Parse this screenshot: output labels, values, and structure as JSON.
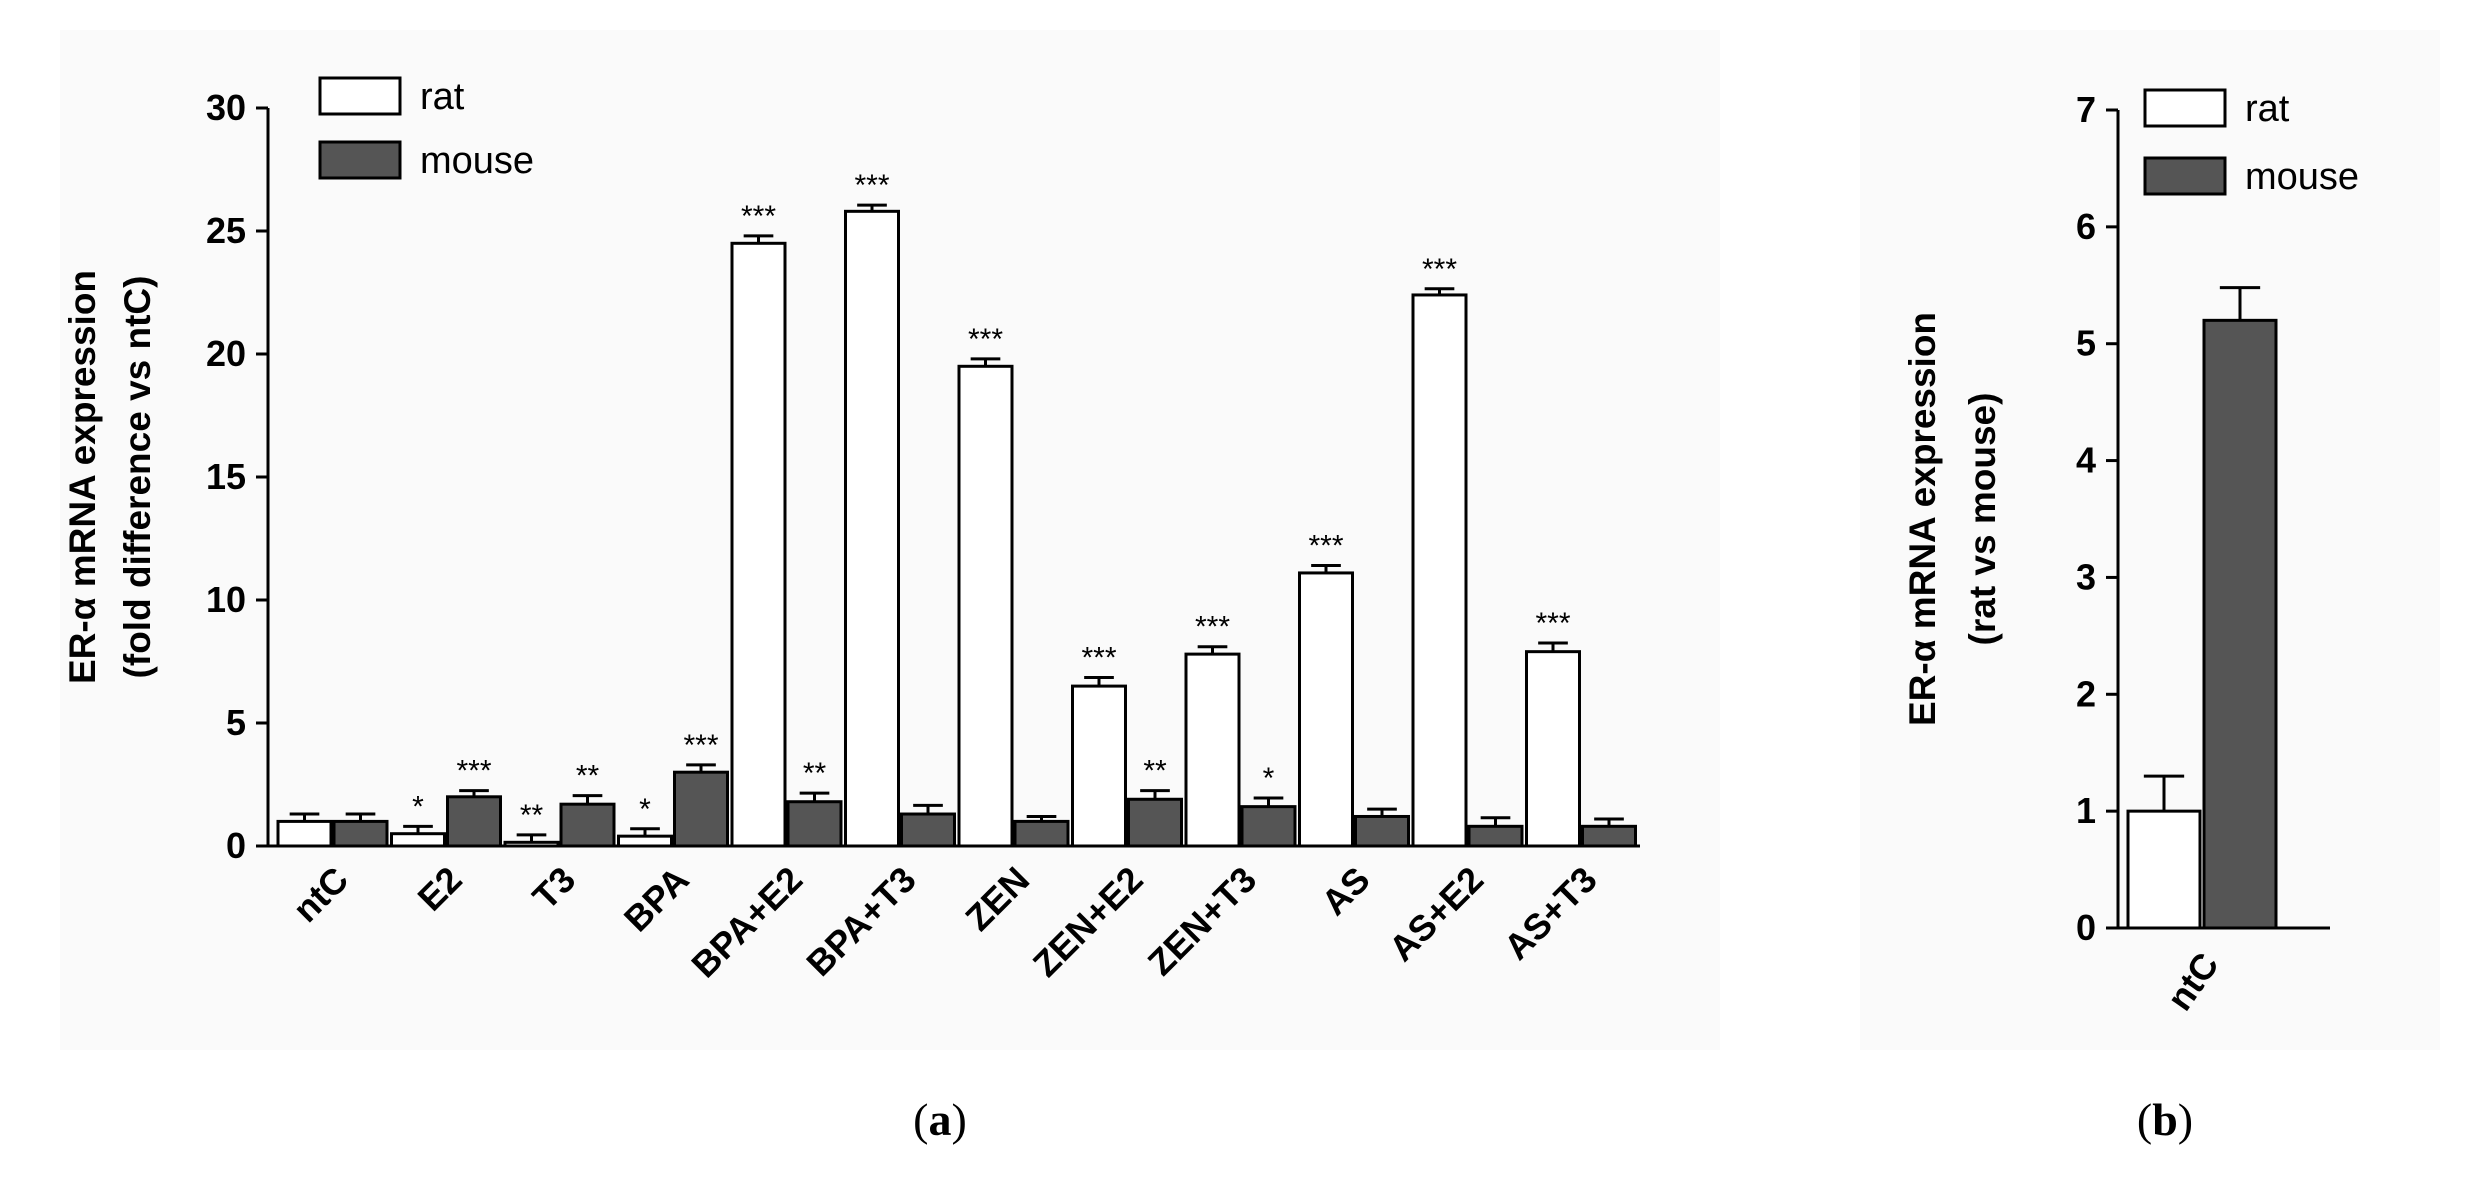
{
  "chart_data": [
    {
      "type": "bar",
      "panel_label": "a",
      "ylabel_lines": [
        "ER-α mRNA expression",
        "(fold difference vs ntC)"
      ],
      "xlabel": "",
      "ylim": [
        0,
        30
      ],
      "yticks": [
        "0",
        "5",
        "10",
        "15",
        "20",
        "25",
        "30"
      ],
      "legend_position": "top-left",
      "categories": [
        "ntC",
        "E2",
        "T3",
        "BPA",
        "BPA+E2",
        "BPA+T3",
        "ZEN",
        "ZEN+E2",
        "ZEN+T3",
        "AS",
        "AS+E2",
        "AS+T3"
      ],
      "series": [
        {
          "name": "rat",
          "color": "#ffffff",
          "values": [
            1.0,
            0.5,
            0.15,
            0.4,
            24.5,
            25.8,
            19.5,
            6.5,
            7.8,
            11.1,
            22.4,
            7.9
          ],
          "errors": [
            0.3,
            0.3,
            0.3,
            0.3,
            0.3,
            0.25,
            0.3,
            0.35,
            0.3,
            0.3,
            0.25,
            0.35
          ],
          "significance": [
            "",
            "*",
            "**",
            "*",
            "***",
            "***",
            "***",
            "***",
            "***",
            "***",
            "***",
            "***"
          ]
        },
        {
          "name": "mouse",
          "color": "#555555",
          "values": [
            1.0,
            2.0,
            1.7,
            3.0,
            1.8,
            1.3,
            1.0,
            1.9,
            1.6,
            1.2,
            0.8,
            0.8
          ],
          "errors": [
            0.3,
            0.25,
            0.35,
            0.3,
            0.35,
            0.35,
            0.2,
            0.35,
            0.35,
            0.3,
            0.35,
            0.3
          ],
          "significance": [
            "",
            "***",
            "**",
            "***",
            "**",
            "",
            "",
            "**",
            "*",
            "",
            "",
            ""
          ]
        }
      ]
    },
    {
      "type": "bar",
      "panel_label": "b",
      "ylabel_lines": [
        "ER-α mRNA expression",
        "(rat vs mouse)"
      ],
      "xlabel": "",
      "ylim": [
        0,
        7
      ],
      "yticks": [
        "0",
        "1",
        "2",
        "3",
        "4",
        "5",
        "6",
        "7"
      ],
      "legend_position": "top-left",
      "categories": [
        "ntC"
      ],
      "series": [
        {
          "name": "rat",
          "color": "#ffffff",
          "values": [
            1.0
          ],
          "errors": [
            0.3
          ],
          "significance": [
            ""
          ]
        },
        {
          "name": "mouse",
          "color": "#555555",
          "values": [
            5.2
          ],
          "errors": [
            0.28
          ],
          "significance": [
            ""
          ]
        }
      ]
    }
  ]
}
